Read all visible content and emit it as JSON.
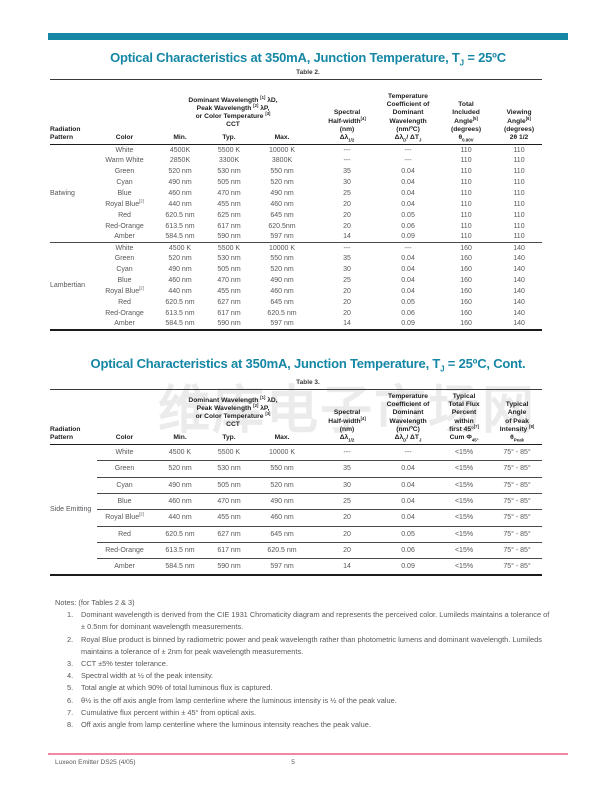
{
  "colors": {
    "teal": "#1587A5",
    "pink": "#F287A2",
    "heading_text": "#222224",
    "body_text": "#56575B"
  },
  "watermark": "维库电子市场网",
  "table2": {
    "title_html": "Optical Characteristics at 350mA, Junction Temperature, T<sub>J</sub> = 25ºC",
    "caption": "Table 2.",
    "headers": {
      "radiation_pattern": [
        "Radiation",
        "Pattern"
      ],
      "color": "Color",
      "wavelength_group": [
        "Dominant Wavelength <sup>[1]</sup> λD,",
        "Peak Wavelength <sup>[2]</sup> λP,",
        "or Color Temperature <sup>[3]</sup>",
        "CCT"
      ],
      "min": "Min.",
      "typ": "Typ.",
      "max": "Max.",
      "spectral": [
        "Spectral",
        "Half-width<sup>[4]</sup>",
        "(nm)",
        "Δλ<sub>1/2</sub>"
      ],
      "temp_coeff": [
        "Temperature",
        "Coefficient of",
        "Dominant",
        "Wavelength",
        "(nm/ºC)",
        "Δλ<sub>D</sub>/ ΔT<sub>J</sub>"
      ],
      "total_angle": [
        "Total",
        "Included",
        "Angle<sup>[5]</sup>",
        "(degrees)",
        "θ<sub>0.90V</sub>"
      ],
      "viewing_angle": [
        "Viewing",
        "Angle<sup>[6]</sup>",
        "(degrees)",
        "2θ 1/2"
      ]
    },
    "sections": [
      {
        "pattern": "Batwing",
        "rows": [
          [
            "White",
            "4500K",
            "5500 K",
            "10000 K",
            "---",
            "---",
            "110",
            "110"
          ],
          [
            "Warm White",
            "2850K",
            "3300K",
            "3800K",
            "---",
            "---",
            "110",
            "110"
          ],
          [
            "Green",
            "520 nm",
            "530 nm",
            "550 nm",
            "35",
            "0.04",
            "110",
            "110"
          ],
          [
            "Cyan",
            "490 nm",
            "505 nm",
            "520 nm",
            "30",
            "0.04",
            "110",
            "110"
          ],
          [
            "Blue",
            "460 nm",
            "470 nm",
            "490 nm",
            "25",
            "0.04",
            "110",
            "110"
          ],
          [
            "Royal Blue<sup>[2]</sup>",
            "440 nm",
            "455 nm",
            "460 nm",
            "20",
            "0.04",
            "110",
            "110"
          ],
          [
            "Red",
            "620.5 nm",
            "625 nm",
            "645 nm",
            "20",
            "0.05",
            "110",
            "110"
          ],
          [
            "Red-Orange",
            "613.5 nm",
            "617 nm",
            "620.5nm",
            "20",
            "0.06",
            "110",
            "110"
          ],
          [
            "Amber",
            "584.5 nm",
            "590 nm",
            "597 nm",
            "14",
            "0.09",
            "110",
            "110"
          ]
        ]
      },
      {
        "pattern": "Lambertian",
        "rows": [
          [
            "White",
            "4500 K",
            "5500 K",
            "10000 K",
            "---",
            "---",
            "160",
            "140"
          ],
          [
            "Green",
            "520 nm",
            "530 nm",
            "550 nm",
            "35",
            "0.04",
            "160",
            "140"
          ],
          [
            "Cyan",
            "490 nm",
            "505 nm",
            "520 nm",
            "30",
            "0.04",
            "160",
            "140"
          ],
          [
            "Blue",
            "460 nm",
            "470 nm",
            "490 nm",
            "25",
            "0.04",
            "160",
            "140"
          ],
          [
            "Royal Blue<sup>[2]</sup>",
            "440 nm",
            "455 nm",
            "460 nm",
            "20",
            "0.04",
            "160",
            "140"
          ],
          [
            "Red",
            "620.5 nm",
            "627 nm",
            "645 nm",
            "20",
            "0.05",
            "160",
            "140"
          ],
          [
            "Red-Orange",
            "613.5 nm",
            "617 nm",
            "620.5 nm",
            "20",
            "0.06",
            "160",
            "140"
          ],
          [
            "Amber",
            "584.5 nm",
            "590 nm",
            "597 nm",
            "14",
            "0.09",
            "160",
            "140"
          ]
        ]
      }
    ]
  },
  "table3": {
    "title_html": "Optical Characteristics at 350mA, Junction Temperature, T<sub>J</sub> = 25ºC, Cont.",
    "caption": "Table 3.",
    "headers": {
      "radiation_pattern": [
        "Radiation",
        "Pattern"
      ],
      "color": "Color",
      "wavelength_group": [
        "Dominant Wavelength <sup>[1]</sup> λD,",
        "Peak Wavelength <sup>[2]</sup> λP,",
        "or Color Temperature <sup>[3]</sup>",
        "CCT"
      ],
      "min": "Min.",
      "typ": "Typ.",
      "max": "Max.",
      "spectral": [
        "Spectral",
        "Half-width<sup>[4]</sup>",
        "(nm)",
        "Δλ<sub>1/2</sub>"
      ],
      "temp_coeff": [
        "Temperature",
        "Coefficient of",
        "Dominant",
        "Wavelength",
        "(nm/ºC)",
        "Δλ<sub>D</sub>/ ΔT<sub>J</sub>"
      ],
      "flux_percent": [
        "Typical",
        "Total Flux",
        "Percent",
        "within",
        "first 45°<sup>[7]</sup>",
        "Cum Φ<sub>45°</sub>"
      ],
      "peak_angle": [
        "Typical",
        "Angle",
        "of Peak",
        "Intensity <sup>[8]</sup>",
        "θ<sub>Peak</sub>"
      ]
    },
    "sections": [
      {
        "pattern": "Side Emitting",
        "rows": [
          [
            "White",
            "4500 K",
            "5500 K",
            "10000 K",
            "---",
            "---",
            "<15%",
            "75° - 85°"
          ],
          [
            "Green",
            "520 nm",
            "530 nm",
            "550 nm",
            "35",
            "0.04",
            "<15%",
            "75° - 85°"
          ],
          [
            "Cyan",
            "490 nm",
            "505 nm",
            "520 nm",
            "30",
            "0.04",
            "<15%",
            "75° - 85°"
          ],
          [
            "Blue",
            "460 nm",
            "470 nm",
            "490 nm",
            "25",
            "0.04",
            "<15%",
            "75° - 85°"
          ],
          [
            "Royal Blue<sup>[2]</sup>",
            "440 nm",
            "455 nm",
            "460 nm",
            "20",
            "0.04",
            "<15%",
            "75° - 85°"
          ],
          [
            "Red",
            "620.5 nm",
            "627 nm",
            "645 nm",
            "20",
            "0.05",
            "<15%",
            "75° - 85°"
          ],
          [
            "Red-Orange",
            "613.5 nm",
            "617 nm",
            "620.5 nm",
            "20",
            "0.06",
            "<15%",
            "75° - 85°"
          ],
          [
            "Amber",
            "584.5 nm",
            "590 nm",
            "597 nm",
            "14",
            "0.09",
            "<15%",
            "75° - 85°"
          ]
        ]
      }
    ]
  },
  "notes": {
    "heading": "Notes: (for Tables 2 & 3)",
    "items": [
      {
        "num": "1.",
        "html": "Dominant wavelength is derived from the CIE 1931 Chromaticity diagram and represents the perceived color. Lumileds maintains a tolerance of ± 0.5nm for dominant wavelength measurements."
      },
      {
        "num": "2.",
        "html": "Royal Blue product is binned by radiometric power and peak wavelength rather than photometric lumens and dominant wavelength. Lumileds maintains a tolerance of ± 2nm for peak wavelength measurements."
      },
      {
        "num": "3.",
        "html": "CCT ±5% tester tolerance."
      },
      {
        "num": "4.",
        "html": "Spectral width at ½ of the peak intensity."
      },
      {
        "num": "5.",
        "html": "Total angle at which 90% of total luminous flux is captured."
      },
      {
        "num": "6.",
        "html": "θ½ is the off axis angle from lamp centerline where the luminous intensity is ½ of the peak value."
      },
      {
        "num": "7.",
        "html": "Cumulative flux percent within ± 45° from optical axis."
      },
      {
        "num": "8.",
        "html": "Off axis angle from lamp centerline where the luminous intensity reaches the peak value."
      }
    ]
  },
  "footer": {
    "left": "Luxeon Emitter  DS25  (4/05)",
    "page": "5"
  }
}
